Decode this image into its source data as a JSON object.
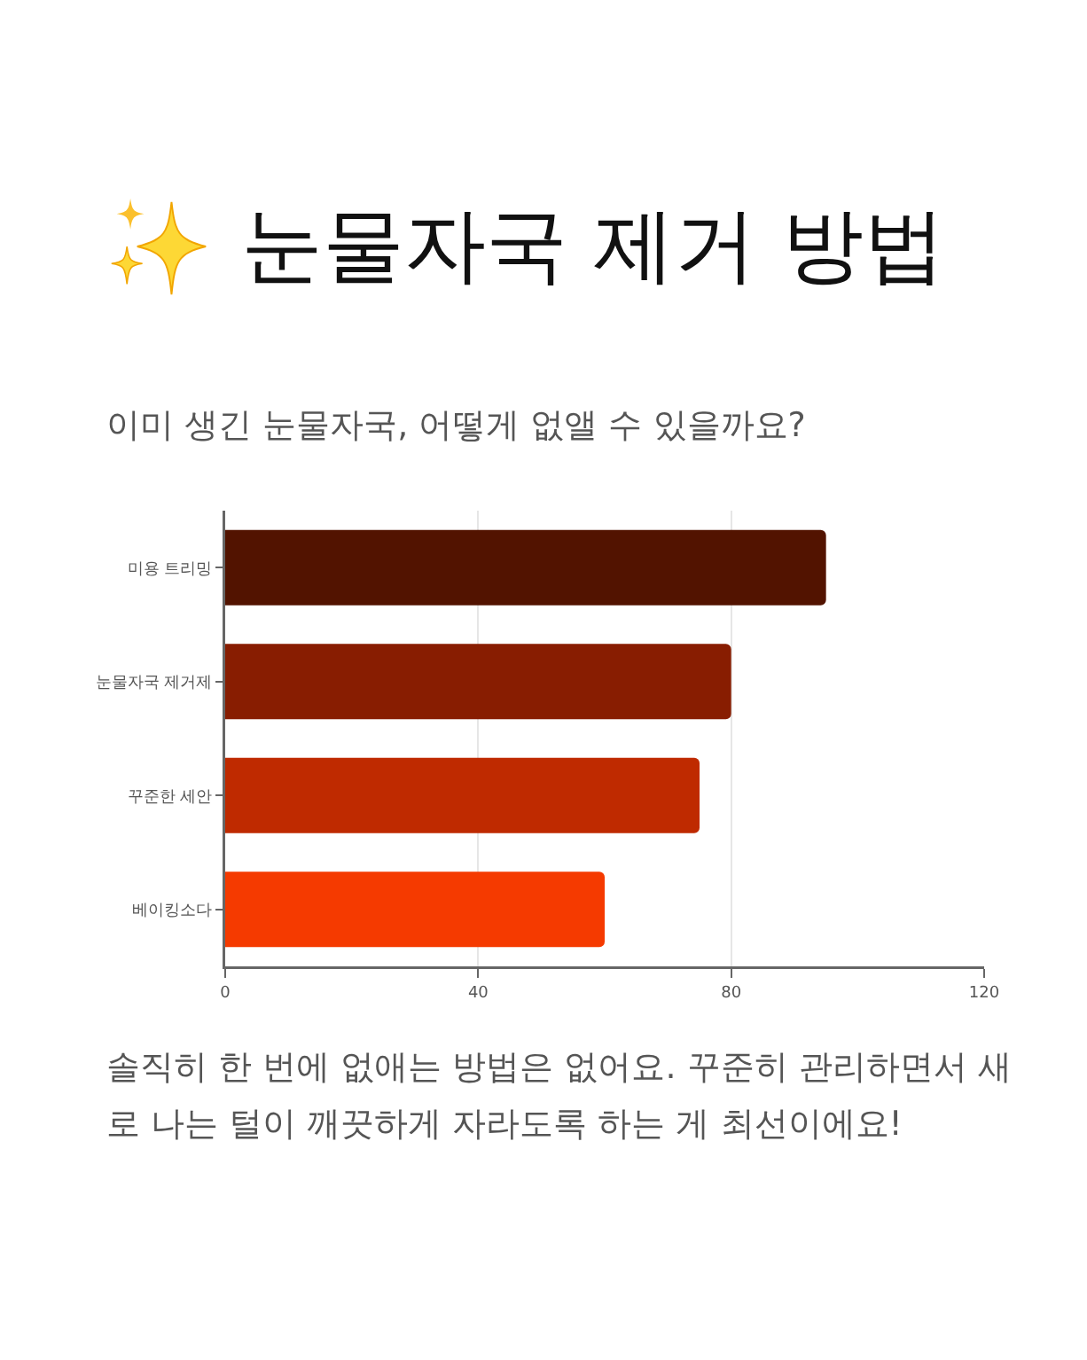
{
  "chart_data": {
    "type": "bar",
    "orientation": "horizontal",
    "title": "눈물자국 제거 방법",
    "subtitle": "이미 생긴 눈물자국, 어떻게 없앨 수 있을까요?",
    "categories": [
      "미용 트리밍",
      "눈물자국 제거제",
      "꾸준한 세안",
      "베이킹소다"
    ],
    "values": [
      95,
      80,
      75,
      60
    ],
    "colors": [
      "#521300",
      "#881d01",
      "#bf2a00",
      "#f53a00"
    ],
    "xlim": [
      0,
      120
    ],
    "xticks": [
      0,
      40,
      80,
      120
    ],
    "grid": "x",
    "annotations": [
      "솔직히 한 번에 없애는 방법은 없어요. 꾸준히 관리하면서 새로 나는 털이 깨끗하게 자라도록 하는 게 최선이에요!"
    ]
  }
}
